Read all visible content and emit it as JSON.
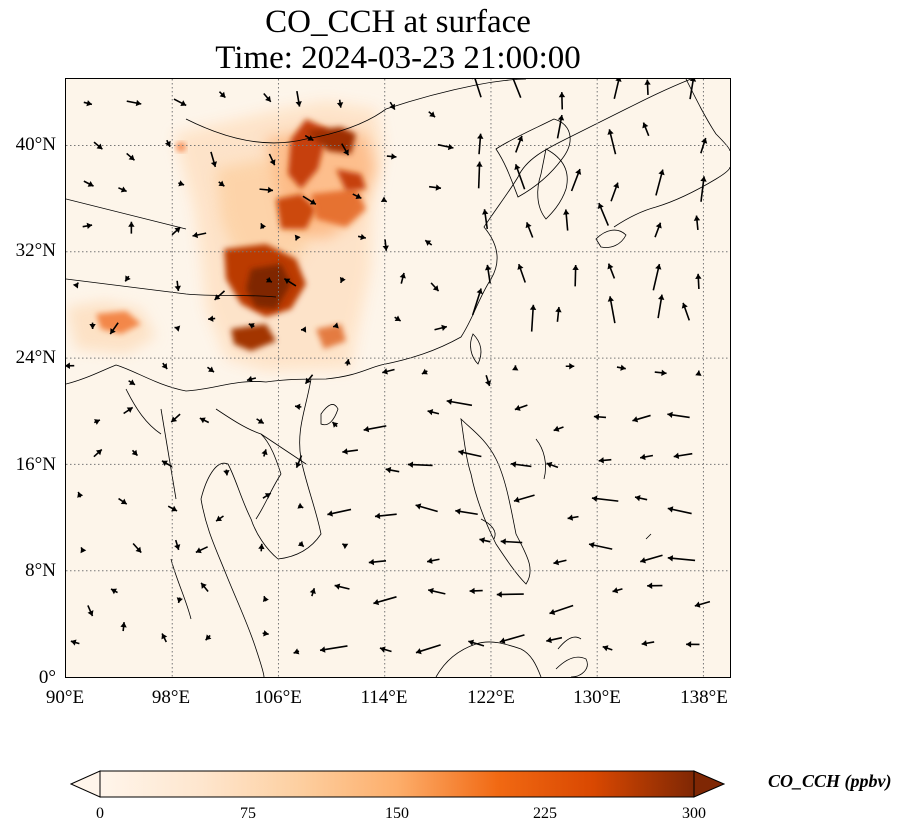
{
  "title": {
    "line1": "CO_CCH at surface",
    "line2": "Time: 2024-03-23 21:00:00"
  },
  "map": {
    "lon_range": [
      90,
      140
    ],
    "lat_range": [
      0,
      45
    ],
    "x_ticks": [
      "90°E",
      "98°E",
      "106°E",
      "114°E",
      "122°E",
      "130°E",
      "138°E"
    ],
    "y_ticks": [
      "0°",
      "8°N",
      "16°N",
      "24°N",
      "32°N",
      "40°N"
    ],
    "gridlines": "dotted",
    "field": "CO_CCH",
    "vectors": "wind arrows"
  },
  "colorbar": {
    "label": "CO_CCH (ppbv)",
    "ticks": [
      "0",
      "75",
      "150",
      "225",
      "300"
    ],
    "colormap": [
      "#fff5eb",
      "#fdd9b4",
      "#fdad6b",
      "#f67824",
      "#d84801",
      "#a33603",
      "#7f2704"
    ],
    "extend": "both"
  }
}
